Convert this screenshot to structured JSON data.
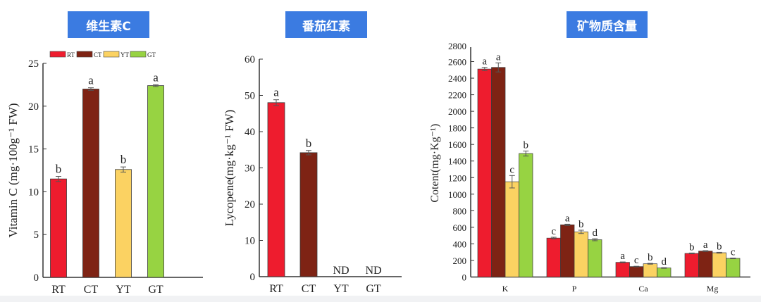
{
  "colors": {
    "RT": "#ee1c2e",
    "CT": "#7e2314",
    "YT": "#fbd262",
    "GT": "#97d342",
    "title_bg": "#3b7be1",
    "axis": "#333333"
  },
  "panels": {
    "vitc": {
      "title": "维生素C"
    },
    "lyco": {
      "title": "番茄红素"
    },
    "mineral": {
      "title": "矿物质含量"
    }
  },
  "legend": [
    "RT",
    "CT",
    "YT",
    "GT"
  ],
  "chart_data": [
    {
      "type": "bar",
      "title": "维生素C",
      "categories": [
        "RT",
        "CT",
        "YT",
        "GT"
      ],
      "values": [
        11.5,
        22.0,
        12.6,
        22.4
      ],
      "errors": [
        0.3,
        0.15,
        0.3,
        0.1
      ],
      "letters": [
        "b",
        "a",
        "b",
        "a"
      ],
      "ylabel": "Vitamin C (mg·100g⁻¹ FW)",
      "xlabel": "",
      "ylim": [
        0,
        25
      ],
      "yticks": [
        0,
        5,
        10,
        15,
        20,
        25
      ],
      "legend": [
        "RT",
        "CT",
        "YT",
        "GT"
      ],
      "legend_position": "top"
    },
    {
      "type": "bar",
      "title": "番茄红素",
      "categories": [
        "RT",
        "CT",
        "YT",
        "GT"
      ],
      "values": [
        48.0,
        34.2,
        null,
        null
      ],
      "errors": [
        0.8,
        0.6,
        null,
        null
      ],
      "letters": [
        "a",
        "b",
        "ND",
        "ND"
      ],
      "ylabel": "Lycopene(mg·kg⁻¹ FW)",
      "xlabel": "",
      "ylim": [
        0,
        60
      ],
      "yticks": [
        0,
        10,
        20,
        30,
        40,
        50,
        60
      ]
    },
    {
      "type": "bar",
      "title": "矿物质含量",
      "categories": [
        "K",
        "P",
        "Ca",
        "Mg"
      ],
      "series": [
        {
          "name": "RT",
          "values": [
            2510,
            470,
            177,
            285
          ],
          "errors": [
            20,
            10,
            5,
            5
          ],
          "letters": [
            "a",
            "c",
            "a",
            "b"
          ]
        },
        {
          "name": "CT",
          "values": [
            2530,
            630,
            126,
            313
          ],
          "errors": [
            55,
            8,
            4,
            5
          ],
          "letters": [
            "a",
            "a",
            "c",
            "a"
          ]
        },
        {
          "name": "YT",
          "values": [
            1150,
            545,
            160,
            293
          ],
          "errors": [
            75,
            20,
            5,
            5
          ],
          "letters": [
            "c",
            "b",
            "b",
            "b"
          ]
        },
        {
          "name": "GT",
          "values": [
            1490,
            450,
            109,
            225
          ],
          "errors": [
            30,
            12,
            4,
            4
          ],
          "letters": [
            "b",
            "d",
            "d",
            "c"
          ]
        }
      ],
      "ylabel": "Cotent(mg·Kg⁻¹)",
      "xlabel": "",
      "ylim": [
        0,
        2750
      ],
      "yticks": [
        0,
        200,
        400,
        600,
        800,
        1000,
        1200,
        1400,
        1600,
        1800,
        2000,
        2200,
        2400,
        2600
      ]
    }
  ]
}
